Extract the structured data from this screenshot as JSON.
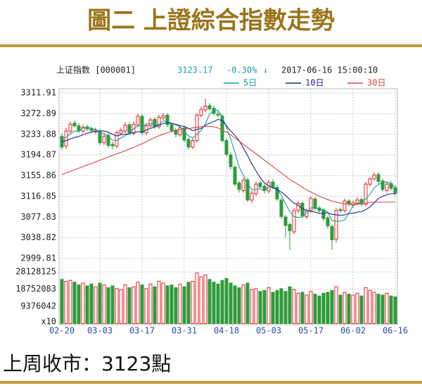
{
  "header": {
    "title": "圖二 上證綜合指數走勢"
  },
  "chart_data": {
    "type": "candlestick",
    "index_name": "上证指数 [000001]",
    "last_price": 3123.17,
    "change": "-0.30%",
    "timestamp": "2017-06-16 15:00:10",
    "categories": [
      "02-20",
      null,
      null,
      null,
      null,
      null,
      null,
      null,
      null,
      "03-03",
      null,
      null,
      null,
      null,
      null,
      null,
      null,
      null,
      null,
      "03-17",
      null,
      null,
      null,
      null,
      null,
      null,
      null,
      null,
      null,
      "03-31",
      null,
      null,
      null,
      null,
      null,
      null,
      null,
      null,
      null,
      "04-18",
      null,
      null,
      null,
      null,
      null,
      null,
      null,
      null,
      null,
      "05-03",
      null,
      null,
      null,
      null,
      null,
      null,
      null,
      null,
      null,
      "05-17",
      null,
      null,
      null,
      null,
      null,
      null,
      null,
      null,
      null,
      "06-02",
      null,
      null,
      null,
      null,
      null,
      null,
      null,
      null,
      null,
      "06-16"
    ],
    "open": [
      3230,
      3212,
      3240,
      3255,
      3250,
      3240,
      3248,
      3245,
      3238,
      3240,
      3218,
      3232,
      3215,
      3212,
      3236,
      3240,
      3252,
      3236,
      3252,
      3268,
      3237,
      3250,
      3262,
      3248,
      3265,
      3270,
      3252,
      3242,
      3233,
      3246,
      3224,
      3210,
      3222,
      3270,
      3280,
      3288,
      3283,
      3272,
      3268,
      3222,
      3195,
      3172,
      3142,
      3128,
      3148,
      3110,
      3122,
      3142,
      3136,
      3127,
      3144,
      3134,
      3110,
      3078,
      3064,
      3050,
      3090,
      3104,
      3079,
      3090,
      3112,
      3095,
      3091,
      3076,
      3060,
      3036,
      3092,
      3090,
      3108,
      3100,
      3104,
      3111,
      3102,
      3140,
      3150,
      3158,
      3146,
      3128,
      3141,
      3133
    ],
    "high": [
      3236,
      3246,
      3258,
      3260,
      3255,
      3252,
      3252,
      3249,
      3246,
      3244,
      3236,
      3236,
      3220,
      3241,
      3246,
      3256,
      3257,
      3258,
      3273,
      3272,
      3255,
      3266,
      3266,
      3271,
      3274,
      3274,
      3256,
      3246,
      3250,
      3250,
      3228,
      3226,
      3274,
      3286,
      3301,
      3293,
      3288,
      3277,
      3272,
      3226,
      3200,
      3176,
      3146,
      3152,
      3152,
      3128,
      3145,
      3147,
      3140,
      3148,
      3149,
      3138,
      3114,
      3082,
      3068,
      3095,
      3108,
      3108,
      3094,
      3117,
      3116,
      3099,
      3095,
      3080,
      3064,
      3095,
      3096,
      3113,
      3112,
      3109,
      3115,
      3115,
      3144,
      3154,
      3162,
      3163,
      3150,
      3144,
      3146,
      3137
    ],
    "low": [
      3205,
      3207,
      3236,
      3246,
      3237,
      3236,
      3240,
      3237,
      3234,
      3214,
      3214,
      3208,
      3206,
      3208,
      3232,
      3236,
      3233,
      3232,
      3248,
      3232,
      3232,
      3246,
      3244,
      3244,
      3261,
      3248,
      3237,
      3228,
      3229,
      3219,
      3205,
      3206,
      3218,
      3266,
      3276,
      3278,
      3269,
      3266,
      3218,
      3192,
      3168,
      3136,
      3124,
      3124,
      3106,
      3104,
      3118,
      3130,
      3122,
      3122,
      3130,
      3108,
      3074,
      3040,
      3016,
      3046,
      3086,
      3076,
      3074,
      3086,
      3090,
      3086,
      3070,
      3056,
      3016,
      3030,
      3086,
      3086,
      3098,
      3096,
      3100,
      3098,
      3098,
      3136,
      3146,
      3140,
      3126,
      3124,
      3128,
      3118
    ],
    "close": [
      3210,
      3240,
      3253,
      3250,
      3241,
      3247,
      3244,
      3241,
      3242,
      3218,
      3230,
      3213,
      3212,
      3237,
      3241,
      3251,
      3237,
      3253,
      3268,
      3237,
      3250,
      3261,
      3248,
      3266,
      3269,
      3252,
      3241,
      3234,
      3246,
      3223,
      3210,
      3222,
      3270,
      3281,
      3287,
      3282,
      3273,
      3270,
      3222,
      3196,
      3173,
      3140,
      3130,
      3147,
      3110,
      3123,
      3140,
      3135,
      3128,
      3143,
      3135,
      3112,
      3079,
      3062,
      3052,
      3090,
      3104,
      3080,
      3090,
      3113,
      3094,
      3090,
      3075,
      3061,
      3035,
      3090,
      3090,
      3108,
      3103,
      3105,
      3110,
      3102,
      3140,
      3150,
      3157,
      3145,
      3130,
      3140,
      3132,
      3123
    ],
    "ylim": [
      2999.81,
      3311.91
    ],
    "yticks": [
      3311.91,
      3272.89,
      3233.88,
      3194.87,
      3155.86,
      3116.85,
      3077.83,
      3038.82,
      2999.81
    ],
    "grid": true,
    "up_color": "#e8232a",
    "down_color": "#2e9b3a",
    "series": [
      {
        "name": "5日",
        "color": "#1a9e9e",
        "values": [
          3225,
          3228,
          3235,
          3240,
          3239,
          3246,
          3247,
          3245,
          3243,
          3238,
          3235,
          3229,
          3223,
          3222,
          3227,
          3231,
          3236,
          3244,
          3250,
          3249,
          3253,
          3254,
          3253,
          3252,
          3259,
          3259,
          3255,
          3252,
          3248,
          3239,
          3231,
          3227,
          3234,
          3241,
          3254,
          3272,
          3279,
          3279,
          3267,
          3247,
          3225,
          3200,
          3172,
          3157,
          3140,
          3130,
          3130,
          3131,
          3127,
          3134,
          3136,
          3131,
          3119,
          3103,
          3088,
          3079,
          3077,
          3078,
          3086,
          3095,
          3096,
          3093,
          3092,
          3087,
          3071,
          3070,
          3070,
          3072,
          3085,
          3099,
          3103,
          3104,
          3112,
          3121,
          3133,
          3139,
          3144,
          3144,
          3141,
          3134
        ]
      },
      {
        "name": "10日",
        "color": "#1c2a8c",
        "values": [
          3220,
          3222,
          3225,
          3228,
          3230,
          3233,
          3236,
          3238,
          3240,
          3240,
          3240,
          3238,
          3234,
          3231,
          3233,
          3234,
          3235,
          3237,
          3239,
          3238,
          3242,
          3245,
          3248,
          3251,
          3254,
          3256,
          3254,
          3253,
          3250,
          3249,
          3245,
          3241,
          3243,
          3245,
          3251,
          3255,
          3258,
          3262,
          3260,
          3250,
          3240,
          3232,
          3222,
          3208,
          3194,
          3178,
          3165,
          3152,
          3142,
          3137,
          3133,
          3130,
          3125,
          3119,
          3111,
          3104,
          3100,
          3094,
          3090,
          3089,
          3087,
          3085,
          3085,
          3086,
          3083,
          3082,
          3081,
          3082,
          3085,
          3085,
          3087,
          3088,
          3092,
          3097,
          3105,
          3113,
          3117,
          3120,
          3122,
          3122
        ]
      },
      {
        "name": "30日",
        "color": "#d9464a",
        "values": [
          3158,
          3161,
          3164,
          3167,
          3170,
          3173,
          3176,
          3179,
          3182,
          3185,
          3188,
          3191,
          3194,
          3197,
          3200,
          3203,
          3206,
          3209,
          3213,
          3216,
          3220,
          3224,
          3228,
          3231,
          3234,
          3237,
          3239,
          3241,
          3243,
          3244,
          3245,
          3246,
          3247,
          3248,
          3249,
          3249,
          3248,
          3246,
          3242,
          3238,
          3233,
          3227,
          3221,
          3215,
          3209,
          3203,
          3197,
          3191,
          3185,
          3179,
          3173,
          3167,
          3161,
          3155,
          3149,
          3144,
          3139,
          3134,
          3129,
          3125,
          3121,
          3117,
          3114,
          3111,
          3108,
          3106,
          3104,
          3103,
          3102,
          3102,
          3102,
          3103,
          3104,
          3105,
          3106,
          3106,
          3106,
          3106,
          3106,
          3106
        ]
      }
    ],
    "volume": {
      "unit_label": "x10",
      "ylim": [
        0,
        28128125
      ],
      "yticks": [
        9376042,
        18752083,
        28128125
      ],
      "values": [
        24000000,
        23000000,
        23500000,
        22500000,
        21000000,
        22000000,
        20500000,
        21500000,
        20000000,
        22000000,
        21000000,
        19500000,
        20500000,
        19000000,
        18500000,
        21000000,
        19500000,
        20000000,
        22500000,
        21000000,
        19000000,
        21500000,
        20000000,
        23000000,
        22000000,
        20500000,
        21000000,
        19500000,
        21500000,
        20000000,
        22500000,
        23000000,
        27500000,
        25500000,
        26500000,
        24000000,
        22500000,
        21500000,
        23500000,
        24500000,
        22000000,
        20500000,
        19500000,
        21000000,
        22000000,
        18500000,
        19000000,
        17500000,
        18000000,
        19500000,
        17000000,
        18000000,
        19000000,
        17500000,
        20000000,
        18500000,
        16500000,
        17000000,
        15500000,
        17500000,
        16000000,
        15000000,
        16500000,
        17000000,
        18000000,
        20000000,
        15500000,
        17000000,
        16000000,
        15500000,
        16500000,
        15000000,
        19500000,
        18000000,
        17000000,
        16000000,
        15500000,
        16500000,
        15000000,
        14500000
      ]
    }
  },
  "footer": {
    "text": "上周收市：3123點"
  }
}
